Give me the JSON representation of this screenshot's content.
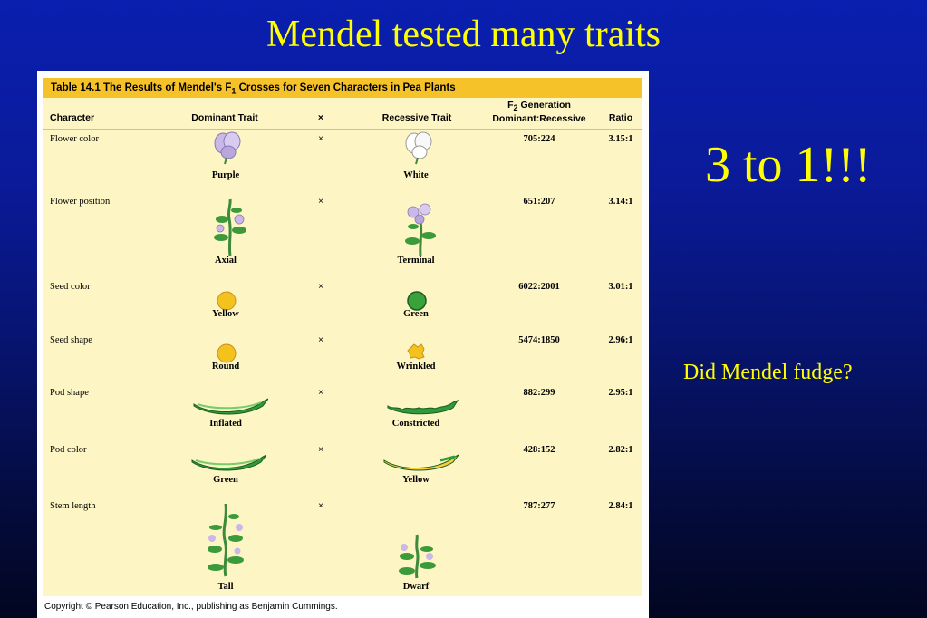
{
  "slide": {
    "title": "Mendel tested many traits",
    "callout": "3 to 1!!!",
    "question": "Did Mendel fudge?"
  },
  "table": {
    "caption_prefix": "Table 14.1  The Results of Mendel's F",
    "caption_sub": "1",
    "caption_suffix": " Crosses for Seven Characters in Pea Plants",
    "headers": {
      "character": "Character",
      "dominant": "Dominant Trait",
      "cross": "×",
      "recessive": "Recessive Trait",
      "gen_line1_prefix": "F",
      "gen_line1_sub": "2",
      "gen_line1_suffix": " Generation",
      "gen_line2": "Dominant:Recessive",
      "ratio": "Ratio"
    },
    "rows": [
      {
        "character": "Flower color",
        "cross": "×",
        "dominant": "Purple",
        "recessive": "White",
        "generation": "705:224",
        "ratio": "3.15:1"
      },
      {
        "character": "Flower position",
        "cross": "×",
        "dominant": "Axial",
        "recessive": "Terminal",
        "generation": "651:207",
        "ratio": "3.14:1"
      },
      {
        "character": "Seed color",
        "cross": "×",
        "dominant": "Yellow",
        "recessive": "Green",
        "generation": "6022:2001",
        "ratio": "3.01:1"
      },
      {
        "character": "Seed shape",
        "cross": "×",
        "dominant": "Round",
        "recessive": "Wrinkled",
        "generation": "5474:1850",
        "ratio": "2.96:1"
      },
      {
        "character": "Pod shape",
        "cross": "×",
        "dominant": "Inflated",
        "recessive": "Constricted",
        "generation": "882:299",
        "ratio": "2.95:1"
      },
      {
        "character": "Pod color",
        "cross": "×",
        "dominant": "Green",
        "recessive": "Yellow",
        "generation": "428:152",
        "ratio": "2.82:1"
      },
      {
        "character": "Stem length",
        "cross": "×",
        "dominant": "Tall",
        "recessive": "Dwarf",
        "generation": "787:277",
        "ratio": "2.84:1"
      }
    ],
    "copyright": "Copyright © Pearson Education, Inc., publishing as Benjamin Cummings."
  },
  "colors": {
    "title_text": "#ffff00",
    "table_background": "#fdf5c4",
    "caption_bar": "#f6c22a",
    "pod_green": "#2f9a3a",
    "pod_yellow": "#f2d13a",
    "flower_purple": "#c9b8e8"
  }
}
